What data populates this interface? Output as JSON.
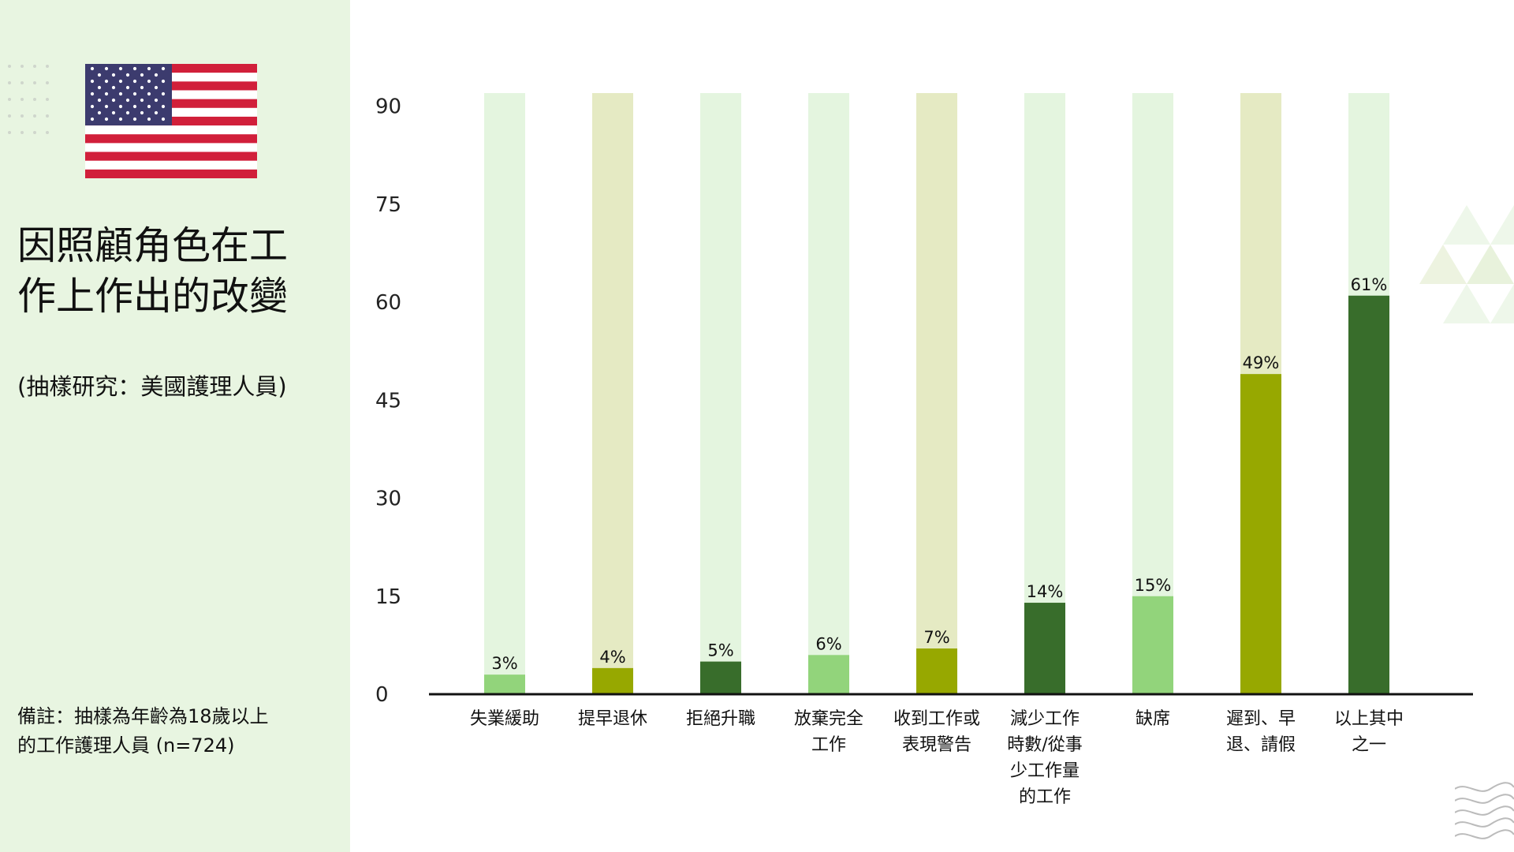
{
  "sidebar": {
    "flag_icon": "us-flag-icon",
    "title_line1": "因照顧角色在工",
    "title_line2": "作上作出的改變",
    "subtitle": "(抽樣研究：美國護理人員)",
    "note_line1": "備註：抽樣為年齡為18歲以上",
    "note_line2": "的工作護理人員 (n=724)"
  },
  "colors": {
    "sidebar_bg": "#e8f5e1",
    "light_green": "#92d47b",
    "olive": "#97a800",
    "dark_green": "#386d2b",
    "track_light": "#e4f5df",
    "track_olive": "#e5eac3"
  },
  "chart_data": {
    "type": "bar",
    "categories": [
      [
        "失業緩助"
      ],
      [
        "提早退休"
      ],
      [
        "拒絕升職"
      ],
      [
        "放棄完全",
        "工作"
      ],
      [
        "收到工作或",
        "表現警告"
      ],
      [
        "減少工作",
        "時數/從事",
        "少工作量",
        "的工作"
      ],
      [
        "缺席"
      ],
      [
        "遲到、早",
        "退、請假"
      ],
      [
        "以上其中",
        "之一"
      ]
    ],
    "values": [
      3,
      4,
      5,
      6,
      7,
      14,
      15,
      49,
      61
    ],
    "value_labels": [
      "3%",
      "4%",
      "5%",
      "6%",
      "7%",
      "14%",
      "15%",
      "49%",
      "61%"
    ],
    "bar_colors": [
      "#92d47b",
      "#97a800",
      "#386d2b",
      "#92d47b",
      "#97a800",
      "#386d2b",
      "#92d47b",
      "#97a800",
      "#386d2b"
    ],
    "track_colors": [
      "#e4f5df",
      "#e5eac3",
      "#e4f5df",
      "#e4f5df",
      "#e5eac3",
      "#e4f5df",
      "#e4f5df",
      "#e5eac3",
      "#e4f5df"
    ],
    "yticks": [
      0,
      15,
      30,
      45,
      60,
      75,
      90
    ],
    "ylim": [
      0,
      92
    ],
    "grid": false,
    "legend": "none"
  }
}
